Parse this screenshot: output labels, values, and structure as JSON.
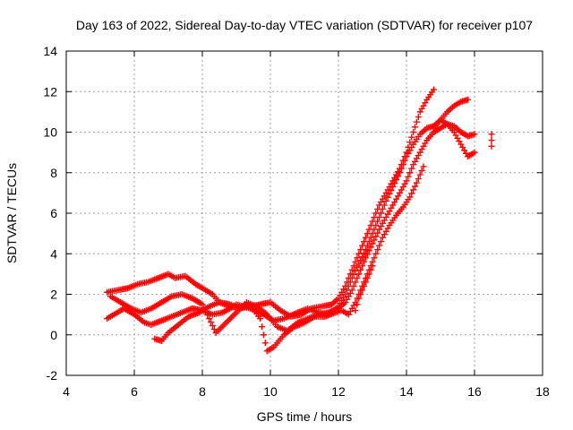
{
  "chart_data": {
    "type": "scatter",
    "title": "Day 163 of 2022, Sidereal Day-to-day VTEC variation (SDTVAR) for receiver p107",
    "xlabel": "GPS time / hours",
    "ylabel": "SDTVAR / TECUs",
    "xlim": [
      4,
      18
    ],
    "ylim": [
      -2,
      14
    ],
    "xticks": [
      "4",
      "6",
      "8",
      "10",
      "12",
      "14",
      "16",
      "18"
    ],
    "yticks": [
      "-2",
      "0",
      "2",
      "4",
      "6",
      "8",
      "10",
      "12",
      "14"
    ],
    "grid": true,
    "marker": "+",
    "color": "#ff0000",
    "series": [
      {
        "x": [
          5.2,
          5.5,
          5.8,
          6.1,
          6.4,
          6.7,
          7.0,
          7.2,
          7.5,
          7.8,
          8.0,
          8.3,
          8.5,
          8.8,
          9.1,
          9.4,
          9.7,
          10.0,
          10.3,
          10.6,
          10.9,
          11.2,
          11.5,
          11.8,
          12.0,
          12.2,
          12.4,
          12.6,
          12.8,
          13.0,
          13.2,
          13.4,
          13.6,
          13.8,
          14.0,
          14.2,
          14.4,
          14.6,
          14.8
        ],
        "y": [
          2.1,
          2.2,
          2.3,
          2.5,
          2.6,
          2.8,
          3.0,
          2.8,
          2.9,
          2.5,
          2.3,
          2.0,
          1.6,
          1.4,
          1.3,
          1.4,
          1.5,
          1.6,
          1.2,
          0.9,
          1.0,
          1.3,
          1.4,
          1.5,
          1.8,
          2.4,
          3.2,
          4.0,
          4.8,
          5.6,
          6.4,
          7.0,
          7.6,
          8.2,
          9.0,
          10.0,
          11.0,
          11.6,
          12.1
        ]
      },
      {
        "x": [
          5.2,
          5.4,
          5.7,
          6.0,
          6.3,
          6.5,
          6.8,
          7.1,
          7.4,
          7.7,
          8.0,
          8.3,
          8.6,
          9.0,
          9.4,
          9.8,
          10.1,
          10.4,
          10.8,
          11.1,
          11.4,
          11.7,
          12.0,
          12.2,
          12.4,
          12.6,
          12.8,
          13.0,
          13.2,
          13.4,
          13.6,
          13.8,
          14.0,
          14.2,
          14.4,
          14.6,
          14.8,
          15.0,
          15.2,
          15.4,
          15.6,
          15.8
        ],
        "y": [
          0.8,
          1.0,
          1.3,
          1.0,
          0.6,
          0.5,
          0.7,
          0.9,
          1.1,
          1.3,
          1.2,
          1.0,
          1.1,
          1.5,
          1.3,
          1.0,
          0.7,
          0.8,
          1.1,
          1.3,
          1.1,
          1.0,
          1.4,
          2.0,
          2.8,
          3.5,
          4.2,
          5.0,
          5.8,
          6.6,
          7.3,
          8.0,
          8.8,
          9.4,
          9.9,
          10.2,
          10.3,
          10.6,
          11.0,
          11.3,
          11.5,
          11.6
        ]
      },
      {
        "x": [
          5.3,
          5.6,
          5.9,
          6.2,
          6.5,
          6.8,
          7.1,
          7.4,
          7.7,
          8.0,
          8.2,
          8.4,
          8.7,
          9.0,
          9.3,
          9.6,
          9.9,
          10.2,
          10.5,
          10.8,
          11.1,
          11.4,
          11.7,
          12.0,
          12.2,
          12.4,
          12.6,
          12.8,
          13.0,
          13.2,
          13.4,
          13.6,
          13.8,
          14.0,
          14.2,
          14.4,
          14.6,
          14.8,
          15.0,
          15.2,
          15.4,
          15.6,
          15.8,
          16.0
        ],
        "y": [
          1.9,
          1.6,
          1.3,
          1.1,
          1.3,
          1.6,
          1.9,
          2.0,
          1.8,
          1.5,
          0.8,
          0.1,
          0.6,
          1.1,
          1.6,
          1.4,
          1.0,
          0.4,
          0.2,
          0.6,
          0.8,
          1.0,
          1.1,
          1.3,
          1.6,
          2.2,
          3.0,
          3.8,
          4.5,
          5.2,
          5.8,
          6.4,
          7.0,
          7.6,
          8.4,
          9.0,
          9.6,
          10.0,
          10.2,
          10.4,
          10.3,
          10.0,
          9.8,
          9.9
        ]
      },
      {
        "x": [
          6.6,
          6.8,
          7.0,
          7.3,
          7.6,
          7.9,
          8.2,
          8.5,
          8.8,
          9.1,
          9.4,
          9.7,
          9.9,
          10.1,
          10.4,
          10.7,
          11.0,
          11.3,
          11.6,
          11.9,
          12.1,
          12.3,
          12.5,
          12.7,
          12.9,
          13.1,
          13.3,
          13.5,
          13.7,
          13.9,
          14.1,
          14.3,
          14.5
        ],
        "y": [
          -0.2,
          -0.3,
          0.1,
          0.5,
          0.9,
          1.1,
          1.4,
          1.6,
          1.5,
          1.3,
          1.5,
          0.8,
          -0.8,
          -0.6,
          0.0,
          0.4,
          0.6,
          0.9,
          0.9,
          1.1,
          1.2,
          1.0,
          1.6,
          2.4,
          3.2,
          4.0,
          4.8,
          5.4,
          5.9,
          6.3,
          6.8,
          7.5,
          8.3
        ]
      },
      {
        "x": [
          14.8,
          15.0,
          15.2,
          15.4,
          15.6,
          15.8,
          16.0
        ],
        "y": [
          10.2,
          10.6,
          10.4,
          10.0,
          9.4,
          8.8,
          9.0
        ]
      },
      {
        "x": [
          16.5,
          16.5,
          16.5
        ],
        "y": [
          9.9,
          9.6,
          9.3
        ]
      },
      {
        "x": [
          12.5,
          12.6,
          12.8,
          13.0
        ],
        "y": [
          1.2,
          1.8,
          2.6,
          3.4
        ]
      }
    ]
  }
}
